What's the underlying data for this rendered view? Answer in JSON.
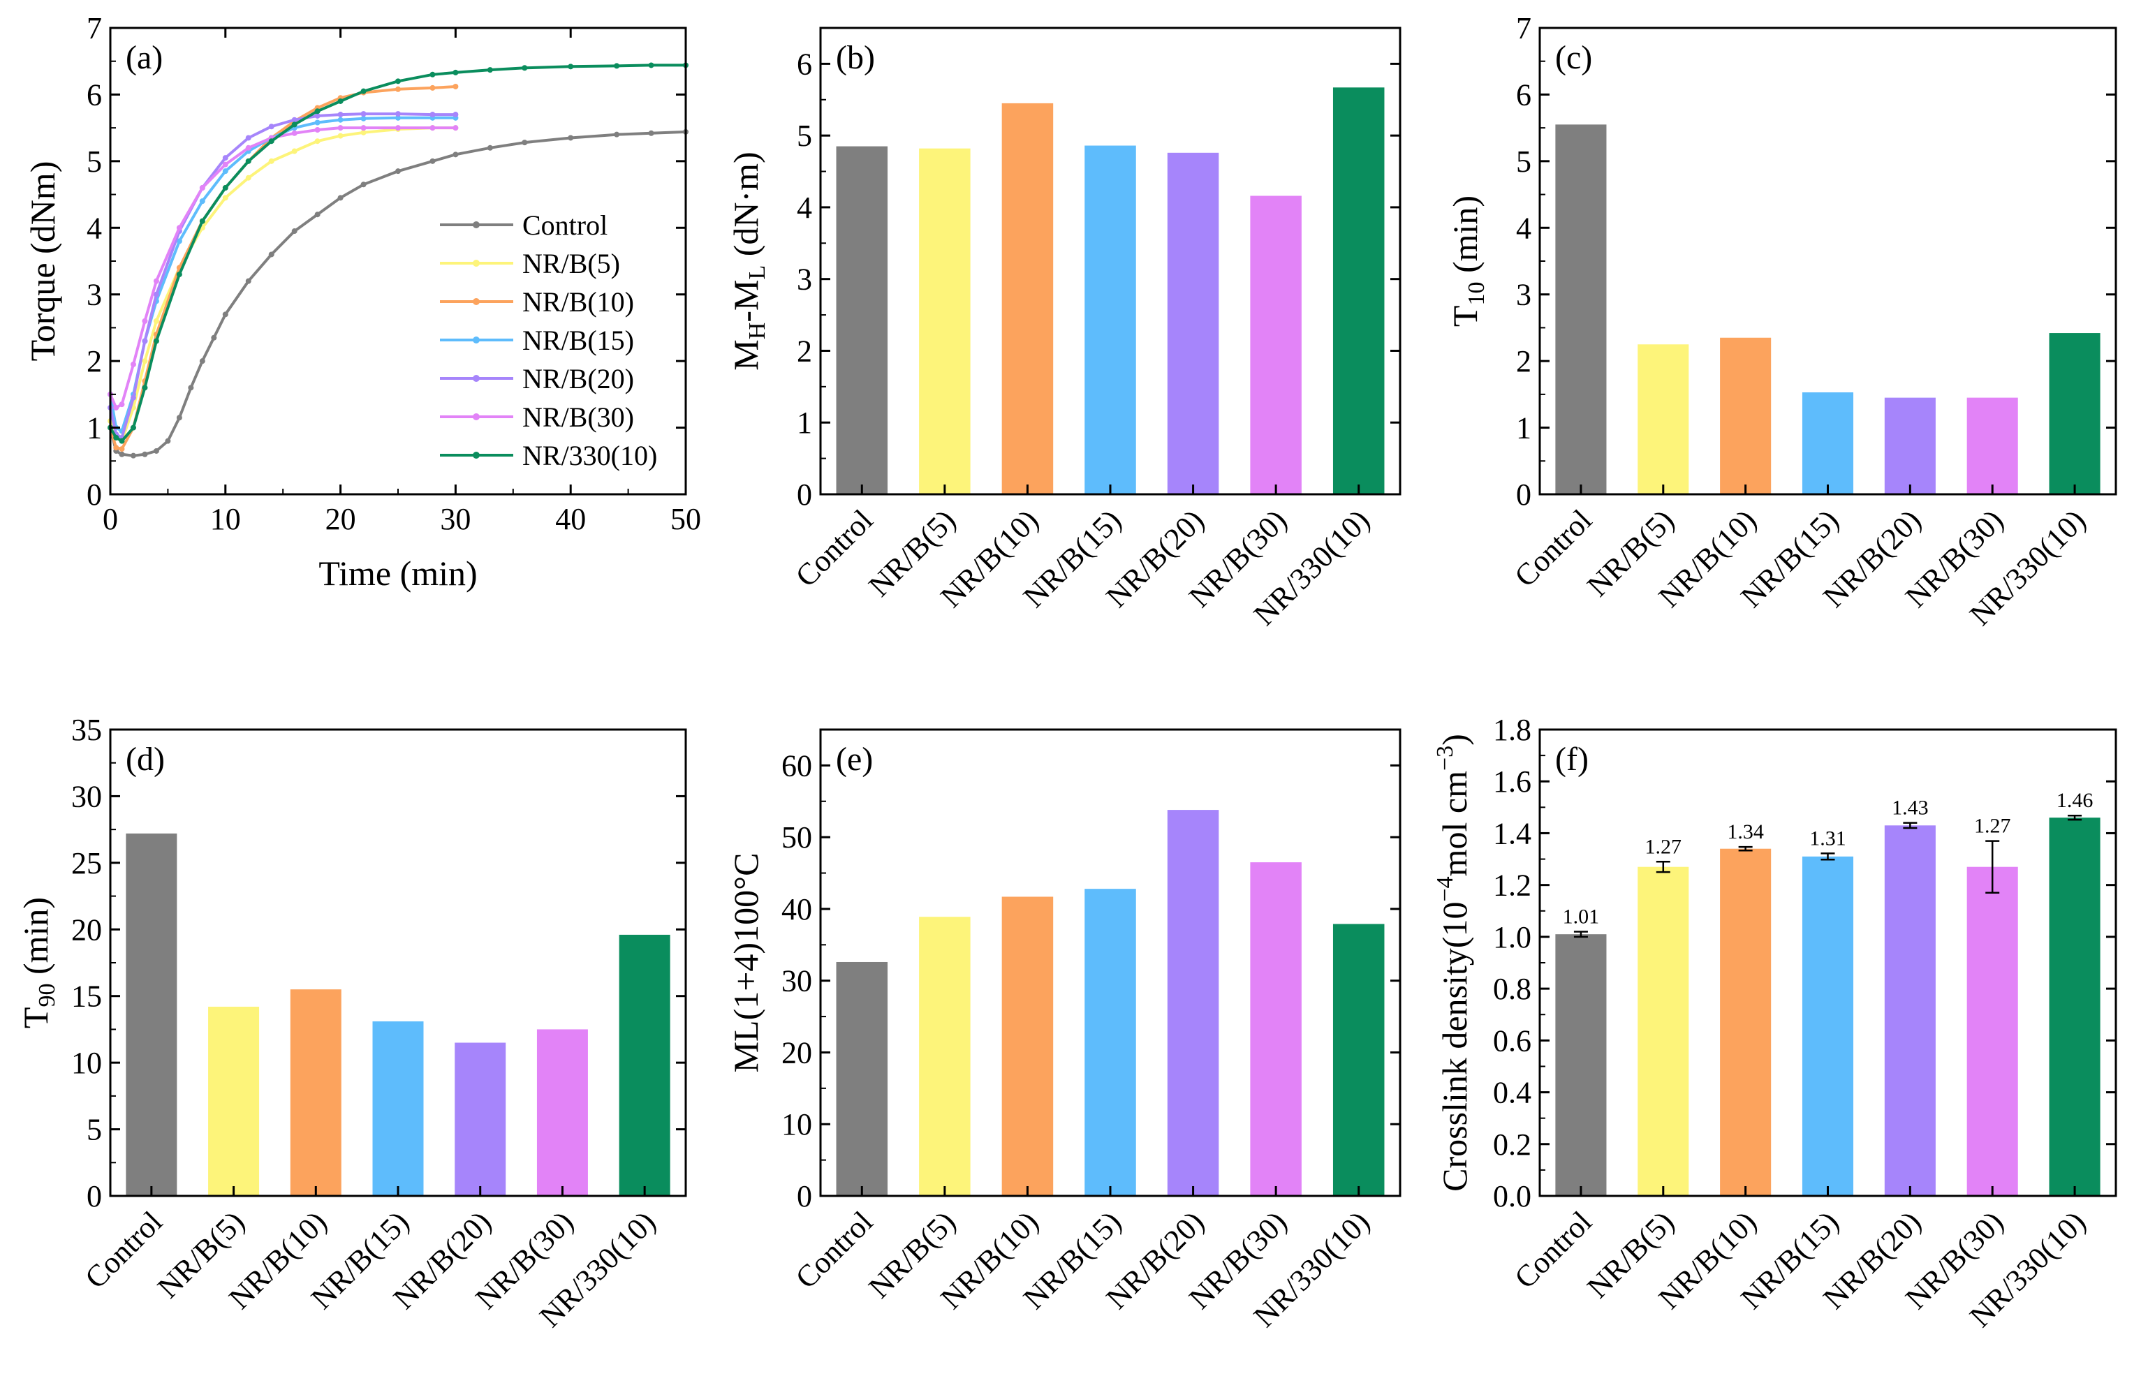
{
  "figure": {
    "colors": {
      "Control": "#7f7f7f",
      "NR/B(5)": "#fdf47a",
      "NR/B(10)": "#fca35d",
      "NR/B(15)": "#5ebcfc",
      "NR/B(20)": "#a685fb",
      "NR/B(30)": "#e283f7",
      "NR/330(10)": "#0a8d5d"
    }
  },
  "chart_data": [
    {
      "id": "a",
      "type": "line",
      "panel_label": "(a)",
      "xlabel": "Time (min)",
      "ylabel": "Torque (dNm)",
      "xlim": [
        0,
        50
      ],
      "ylim": [
        0,
        7
      ],
      "xticks": [
        0,
        10,
        20,
        30,
        40,
        50
      ],
      "yticks": [
        0,
        1,
        2,
        3,
        4,
        5,
        6,
        7
      ],
      "legend_position": "right-middle",
      "series": [
        {
          "name": "Control",
          "x": [
            0,
            0.5,
            1,
            2,
            3,
            4,
            5,
            6,
            7,
            8,
            9,
            10,
            12,
            14,
            16,
            18,
            20,
            22,
            25,
            28,
            30,
            33,
            36,
            40,
            44,
            47,
            50
          ],
          "y": [
            1.0,
            0.65,
            0.6,
            0.58,
            0.6,
            0.65,
            0.8,
            1.15,
            1.6,
            2.0,
            2.35,
            2.7,
            3.2,
            3.6,
            3.95,
            4.2,
            4.45,
            4.65,
            4.85,
            5.0,
            5.1,
            5.2,
            5.28,
            5.35,
            5.4,
            5.42,
            5.44
          ]
        },
        {
          "name": "NR/B(5)",
          "x": [
            0,
            0.5,
            1,
            2,
            3,
            4,
            6,
            8,
            10,
            12,
            14,
            16,
            18,
            20,
            22,
            25,
            28,
            30
          ],
          "y": [
            1.1,
            0.85,
            0.8,
            1.3,
            2.0,
            2.6,
            3.4,
            4.0,
            4.45,
            4.75,
            5.0,
            5.15,
            5.3,
            5.38,
            5.43,
            5.48,
            5.5,
            5.5
          ]
        },
        {
          "name": "NR/B(10)",
          "x": [
            0,
            0.5,
            1,
            2,
            3,
            4,
            6,
            8,
            10,
            12,
            14,
            16,
            18,
            20,
            22,
            25,
            28,
            30
          ],
          "y": [
            1.0,
            0.7,
            0.68,
            1.0,
            1.7,
            2.4,
            3.4,
            4.1,
            4.6,
            5.0,
            5.35,
            5.6,
            5.8,
            5.95,
            6.03,
            6.08,
            6.1,
            6.12
          ]
        },
        {
          "name": "NR/B(15)",
          "x": [
            0,
            0.5,
            1,
            2,
            3,
            4,
            6,
            8,
            10,
            12,
            14,
            16,
            18,
            20,
            22,
            25,
            28,
            30
          ],
          "y": [
            1.5,
            1.0,
            0.95,
            1.5,
            2.3,
            2.9,
            3.8,
            4.4,
            4.85,
            5.15,
            5.35,
            5.5,
            5.58,
            5.62,
            5.64,
            5.65,
            5.65,
            5.65
          ]
        },
        {
          "name": "NR/B(20)",
          "x": [
            0,
            0.5,
            1,
            2,
            3,
            4,
            6,
            8,
            10,
            12,
            14,
            16,
            18,
            20,
            22,
            25,
            28,
            30
          ],
          "y": [
            1.3,
            0.9,
            0.85,
            1.45,
            2.3,
            3.0,
            3.95,
            4.6,
            5.05,
            5.35,
            5.52,
            5.62,
            5.68,
            5.7,
            5.71,
            5.71,
            5.7,
            5.7
          ]
        },
        {
          "name": "NR/B(30)",
          "x": [
            0,
            0.5,
            1,
            2,
            3,
            4,
            6,
            8,
            10,
            12,
            14,
            16,
            18,
            20,
            22,
            25,
            28,
            30
          ],
          "y": [
            1.5,
            1.3,
            1.35,
            1.95,
            2.6,
            3.2,
            4.0,
            4.6,
            4.95,
            5.2,
            5.35,
            5.42,
            5.47,
            5.5,
            5.5,
            5.5,
            5.5,
            5.5
          ]
        },
        {
          "name": "NR/330(10)",
          "x": [
            0,
            0.5,
            1,
            2,
            3,
            4,
            6,
            8,
            10,
            12,
            14,
            16,
            18,
            20,
            22,
            25,
            28,
            30,
            33,
            36,
            40,
            44,
            47,
            50
          ],
          "y": [
            1.0,
            0.85,
            0.8,
            1.0,
            1.6,
            2.3,
            3.3,
            4.1,
            4.6,
            5.0,
            5.3,
            5.55,
            5.75,
            5.9,
            6.05,
            6.2,
            6.3,
            6.33,
            6.37,
            6.4,
            6.42,
            6.43,
            6.44,
            6.44
          ]
        }
      ]
    },
    {
      "id": "b",
      "type": "bar",
      "panel_label": "(b)",
      "ylabel_main": "M",
      "ylabel_sub1": "H",
      "ylabel_mid": "-M",
      "ylabel_sub2": "L",
      "ylabel_tail": " (dN·m)",
      "categories": [
        "Control",
        "NR/B(5)",
        "NR/B(10)",
        "NR/B(15)",
        "NR/B(20)",
        "NR/B(30)",
        "NR/330(10)"
      ],
      "values": [
        4.85,
        4.82,
        5.45,
        4.86,
        4.76,
        4.16,
        5.67
      ],
      "ylim": [
        0,
        6.5
      ],
      "yticks": [
        0,
        1,
        2,
        3,
        4,
        5,
        6
      ]
    },
    {
      "id": "c",
      "type": "bar",
      "panel_label": "(c)",
      "ylabel_main": "T",
      "ylabel_sub1": "10",
      "ylabel_tail": " (min)",
      "categories": [
        "Control",
        "NR/B(5)",
        "NR/B(10)",
        "NR/B(15)",
        "NR/B(20)",
        "NR/B(30)",
        "NR/330(10)"
      ],
      "values": [
        5.55,
        2.25,
        2.35,
        1.53,
        1.45,
        1.45,
        2.42
      ],
      "ylim": [
        0,
        7
      ],
      "yticks": [
        0,
        1,
        2,
        3,
        4,
        5,
        6,
        7
      ]
    },
    {
      "id": "d",
      "type": "bar",
      "panel_label": "(d)",
      "ylabel_main": "T",
      "ylabel_sub1": "90",
      "ylabel_tail": " (min)",
      "categories": [
        "Control",
        "NR/B(5)",
        "NR/B(10)",
        "NR/B(15)",
        "NR/B(20)",
        "NR/B(30)",
        "NR/330(10)"
      ],
      "values": [
        27.2,
        14.2,
        15.5,
        13.1,
        11.5,
        12.5,
        19.6
      ],
      "ylim": [
        0,
        35
      ],
      "yticks": [
        0,
        5,
        10,
        15,
        20,
        25,
        30,
        35
      ]
    },
    {
      "id": "e",
      "type": "bar",
      "panel_label": "(e)",
      "ylabel_main": "ML(1+4)100°C",
      "categories": [
        "Control",
        "NR/B(5)",
        "NR/B(10)",
        "NR/B(15)",
        "NR/B(20)",
        "NR/B(30)",
        "NR/330(10)"
      ],
      "values": [
        32.6,
        38.9,
        41.7,
        42.8,
        53.8,
        46.5,
        37.9
      ],
      "ylim": [
        0,
        65
      ],
      "yticks": [
        0,
        10,
        20,
        30,
        40,
        50,
        60
      ]
    },
    {
      "id": "f",
      "type": "bar",
      "panel_label": "(f)",
      "ylabel_main": "Crosslink density(10",
      "ylabel_sup1": "−4",
      "ylabel_mid": "mol cm",
      "ylabel_sup2": "−3",
      "ylabel_tail": ")",
      "categories": [
        "Control",
        "NR/B(5)",
        "NR/B(10)",
        "NR/B(15)",
        "NR/B(20)",
        "NR/B(30)",
        "NR/330(10)"
      ],
      "values": [
        1.01,
        1.27,
        1.34,
        1.31,
        1.43,
        1.27,
        1.46
      ],
      "errors": [
        0.01,
        0.02,
        0.007,
        0.012,
        0.01,
        0.1,
        0.008
      ],
      "data_labels": [
        "1.01",
        "1.27",
        "1.34",
        "1.31",
        "1.43",
        "1.27",
        "1.46"
      ],
      "ylim": [
        0,
        1.8
      ],
      "yticks": [
        0.0,
        0.2,
        0.4,
        0.6,
        0.8,
        1.0,
        1.2,
        1.4,
        1.6,
        1.8
      ]
    }
  ]
}
